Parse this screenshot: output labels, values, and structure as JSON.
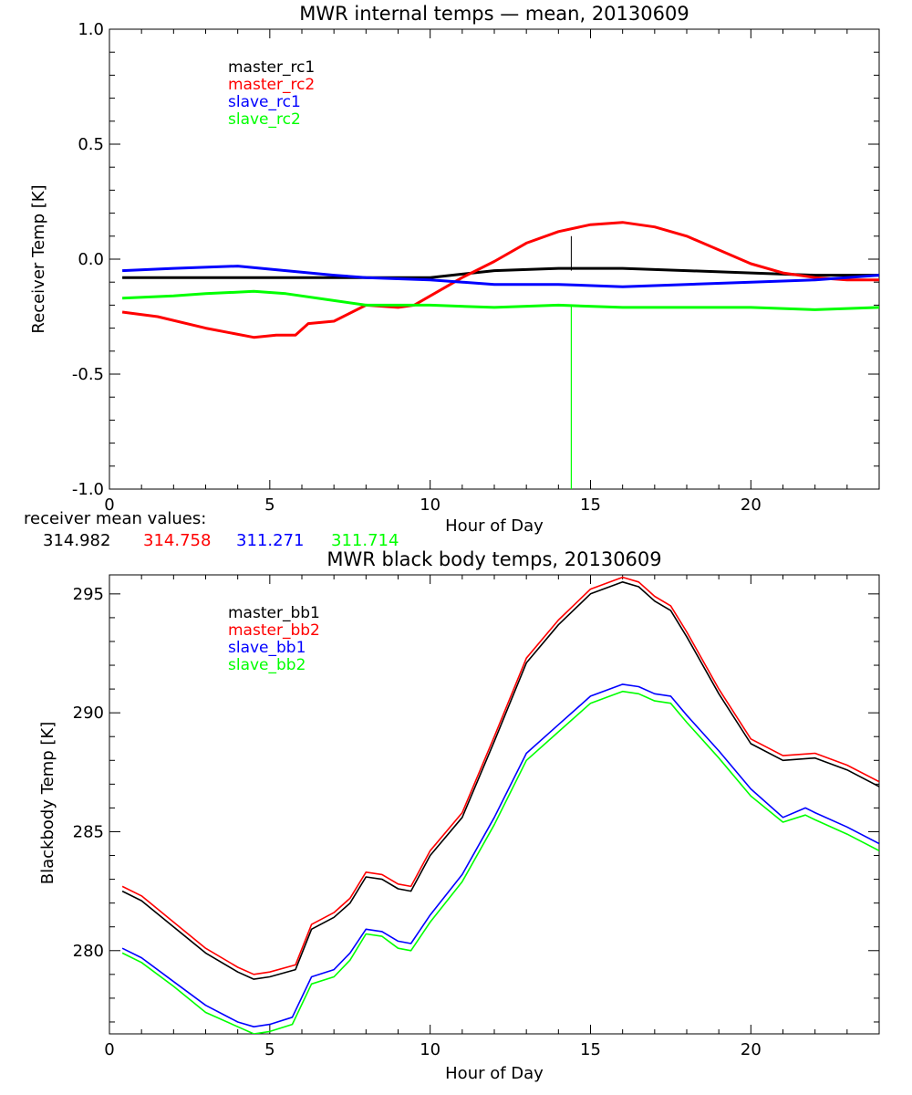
{
  "chart_data": [
    {
      "type": "line",
      "title": "MWR internal temps — mean, 20130609",
      "xlabel": "Hour of Day",
      "ylabel": "Receiver Temp [K]",
      "xlim": [
        0,
        24
      ],
      "ylim": [
        -1.0,
        1.0
      ],
      "xticks": [
        {
          "v": 0,
          "label": "0"
        },
        {
          "v": 5,
          "label": "5"
        },
        {
          "v": 10,
          "label": "10"
        },
        {
          "v": 15,
          "label": "15"
        },
        {
          "v": 20,
          "label": "20"
        }
      ],
      "yticks": [
        {
          "v": 1.0,
          "label": "1.0"
        },
        {
          "v": 0.5,
          "label": "0.5"
        },
        {
          "v": 0.0,
          "label": "0.0"
        },
        {
          "v": -0.5,
          "label": "-0.5"
        },
        {
          "v": -1.0,
          "label": "-1.0"
        }
      ],
      "legend_position": "top-left",
      "series": [
        {
          "name": "master_rc1",
          "color": "#000000",
          "x": [
            0.4,
            2,
            4,
            6,
            8,
            10,
            12,
            14,
            16,
            18,
            20,
            22,
            24
          ],
          "y": [
            -0.08,
            -0.08,
            -0.08,
            -0.08,
            -0.08,
            -0.08,
            -0.05,
            -0.04,
            -0.04,
            -0.05,
            -0.06,
            -0.07,
            -0.07
          ]
        },
        {
          "name": "master_rc2",
          "color": "#ff0000",
          "x": [
            0.4,
            1.5,
            3,
            4.5,
            5.2,
            5.8,
            6.2,
            7,
            8,
            9,
            9.5,
            10,
            11,
            12,
            13,
            14,
            15,
            16,
            17,
            18,
            19,
            20,
            21,
            22,
            23,
            24
          ],
          "y": [
            -0.23,
            -0.25,
            -0.3,
            -0.34,
            -0.33,
            -0.33,
            -0.28,
            -0.27,
            -0.2,
            -0.21,
            -0.2,
            -0.16,
            -0.08,
            -0.01,
            0.07,
            0.12,
            0.15,
            0.16,
            0.14,
            0.1,
            0.04,
            -0.02,
            -0.06,
            -0.08,
            -0.09,
            -0.09
          ]
        },
        {
          "name": "slave_rc1",
          "color": "#0000ff",
          "x": [
            0.4,
            2,
            4,
            5.5,
            7,
            8,
            10,
            12,
            14,
            16,
            18,
            20,
            22,
            24
          ],
          "y": [
            -0.05,
            -0.04,
            -0.03,
            -0.05,
            -0.07,
            -0.08,
            -0.09,
            -0.11,
            -0.11,
            -0.12,
            -0.11,
            -0.1,
            -0.09,
            -0.07
          ]
        },
        {
          "name": "slave_rc2",
          "color": "#00ff00",
          "x": [
            0.4,
            2,
            3,
            4.5,
            5.5,
            7,
            8,
            10,
            12,
            14,
            16,
            18,
            20,
            22,
            24
          ],
          "y": [
            -0.17,
            -0.16,
            -0.15,
            -0.14,
            -0.15,
            -0.18,
            -0.2,
            -0.2,
            -0.21,
            -0.2,
            -0.21,
            -0.21,
            -0.21,
            -0.22,
            -0.21
          ]
        }
      ],
      "spike": {
        "series": "slave_rc2",
        "x": 14.4,
        "y_from": -0.2,
        "y_to": -1.0
      },
      "tick_mark": {
        "series": "master_rc1",
        "x": 14.4,
        "y_from": 0.1,
        "y_to": -0.05
      },
      "mean_values": {
        "label": "receiver mean values:",
        "values": [
          {
            "text": "314.982",
            "color": "#000000"
          },
          {
            "text": "314.758",
            "color": "#ff0000"
          },
          {
            "text": "311.271",
            "color": "#0000ff"
          },
          {
            "text": "311.714",
            "color": "#00ff00"
          }
        ]
      }
    },
    {
      "type": "line",
      "title": "MWR black body temps, 20130609",
      "xlabel": "Hour of Day",
      "ylabel": "Blackbody Temp [K]",
      "xlim": [
        0,
        24
      ],
      "ylim": [
        276.5,
        295.8
      ],
      "xticks": [
        {
          "v": 0,
          "label": "0"
        },
        {
          "v": 5,
          "label": "5"
        },
        {
          "v": 10,
          "label": "10"
        },
        {
          "v": 15,
          "label": "15"
        },
        {
          "v": 20,
          "label": "20"
        }
      ],
      "yticks": [
        {
          "v": 295,
          "label": "295"
        },
        {
          "v": 290,
          "label": "290"
        },
        {
          "v": 285,
          "label": "285"
        },
        {
          "v": 280,
          "label": "280"
        }
      ],
      "legend_position": "top-left",
      "series": [
        {
          "name": "master_bb1",
          "color": "#000000",
          "x": [
            0.4,
            1,
            2,
            3,
            4,
            4.5,
            5,
            5.8,
            6.3,
            7,
            7.5,
            8,
            8.5,
            9,
            9.4,
            10,
            11,
            12,
            13,
            14,
            15,
            16,
            16.5,
            17,
            17.5,
            18,
            19,
            20,
            21,
            22,
            23,
            24
          ],
          "y": [
            282.5,
            282.1,
            281.0,
            279.9,
            279.1,
            278.8,
            278.9,
            279.2,
            280.9,
            281.4,
            282.0,
            283.1,
            283.0,
            282.6,
            282.5,
            284.0,
            285.6,
            288.8,
            292.1,
            293.7,
            295.0,
            295.5,
            295.3,
            294.7,
            294.3,
            293.2,
            290.8,
            288.7,
            288.0,
            288.1,
            287.6,
            286.9
          ]
        },
        {
          "name": "master_bb2",
          "color": "#ff0000",
          "x": [
            0.4,
            1,
            2,
            3,
            4,
            4.5,
            5,
            5.8,
            6.3,
            7,
            7.5,
            8,
            8.5,
            9,
            9.4,
            10,
            11,
            12,
            13,
            14,
            15,
            16,
            16.5,
            17,
            17.5,
            18,
            19,
            20,
            21,
            22,
            23,
            24
          ],
          "y": [
            282.7,
            282.3,
            281.2,
            280.1,
            279.3,
            279.0,
            279.1,
            279.4,
            281.1,
            281.6,
            282.2,
            283.3,
            283.2,
            282.8,
            282.7,
            284.2,
            285.8,
            289.0,
            292.3,
            293.9,
            295.2,
            295.7,
            295.5,
            294.9,
            294.5,
            293.4,
            291.0,
            288.9,
            288.2,
            288.3,
            287.8,
            287.1
          ]
        },
        {
          "name": "slave_bb1",
          "color": "#0000ff",
          "x": [
            0.4,
            1,
            2,
            3,
            4,
            4.5,
            5,
            5.7,
            6.3,
            7,
            7.5,
            8,
            8.5,
            9,
            9.4,
            10,
            11,
            12,
            13,
            14,
            15,
            16,
            16.5,
            17,
            17.5,
            18,
            19,
            20,
            21,
            21.7,
            22,
            23,
            24
          ],
          "y": [
            280.1,
            279.7,
            278.7,
            277.7,
            277.0,
            276.8,
            276.9,
            277.2,
            278.9,
            279.2,
            279.9,
            280.9,
            280.8,
            280.4,
            280.3,
            281.5,
            283.2,
            285.6,
            288.3,
            289.5,
            290.7,
            291.2,
            291.1,
            290.8,
            290.7,
            289.9,
            288.4,
            286.8,
            285.6,
            286.0,
            285.8,
            285.2,
            284.5
          ]
        },
        {
          "name": "slave_bb2",
          "color": "#00ff00",
          "x": [
            0.4,
            1,
            2,
            3,
            4,
            4.5,
            5,
            5.7,
            6.3,
            7,
            7.5,
            8,
            8.5,
            9,
            9.4,
            10,
            11,
            12,
            13,
            14,
            15,
            16,
            16.5,
            17,
            17.5,
            18,
            19,
            20,
            21,
            21.7,
            22,
            23,
            24
          ],
          "y": [
            279.9,
            279.5,
            278.5,
            277.4,
            276.8,
            276.5,
            276.6,
            276.9,
            278.6,
            278.9,
            279.6,
            280.7,
            280.6,
            280.1,
            280.0,
            281.2,
            282.9,
            285.3,
            288.0,
            289.2,
            290.4,
            290.9,
            290.8,
            290.5,
            290.4,
            289.6,
            288.1,
            286.5,
            285.4,
            285.7,
            285.5,
            284.9,
            284.2
          ]
        }
      ]
    }
  ]
}
